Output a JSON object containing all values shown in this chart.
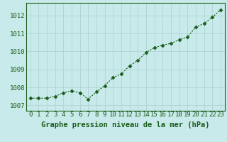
{
  "x": [
    0,
    1,
    2,
    3,
    4,
    5,
    6,
    7,
    8,
    9,
    10,
    11,
    12,
    13,
    14,
    15,
    16,
    17,
    18,
    19,
    20,
    21,
    22,
    23
  ],
  "y": [
    1007.4,
    1007.4,
    1007.4,
    1007.5,
    1007.7,
    1007.8,
    1007.7,
    1007.35,
    1007.75,
    1008.1,
    1008.55,
    1008.75,
    1009.2,
    1009.5,
    1009.95,
    1010.2,
    1010.35,
    1010.45,
    1010.65,
    1010.8,
    1011.35,
    1011.55,
    1011.9,
    1012.3
  ],
  "ylim": [
    1006.7,
    1012.7
  ],
  "yticks": [
    1007,
    1008,
    1009,
    1010,
    1011,
    1012
  ],
  "xlim": [
    -0.5,
    23.5
  ],
  "xticks": [
    0,
    1,
    2,
    3,
    4,
    5,
    6,
    7,
    8,
    9,
    10,
    11,
    12,
    13,
    14,
    15,
    16,
    17,
    18,
    19,
    20,
    21,
    22,
    23
  ],
  "line_color": "#1a5c1a",
  "marker": "D",
  "marker_size": 2.5,
  "bg_color": "#c8eaea",
  "grid_color": "#aad0d0",
  "xlabel": "Graphe pression niveau de la mer (hPa)",
  "xlabel_color": "#1a5c1a",
  "xlabel_fontsize": 7.5,
  "tick_fontsize": 6.5,
  "tick_color": "#1a5c1a",
  "axis_color": "#1a5c1a",
  "bottom_bar_color": "#5a9a5a"
}
